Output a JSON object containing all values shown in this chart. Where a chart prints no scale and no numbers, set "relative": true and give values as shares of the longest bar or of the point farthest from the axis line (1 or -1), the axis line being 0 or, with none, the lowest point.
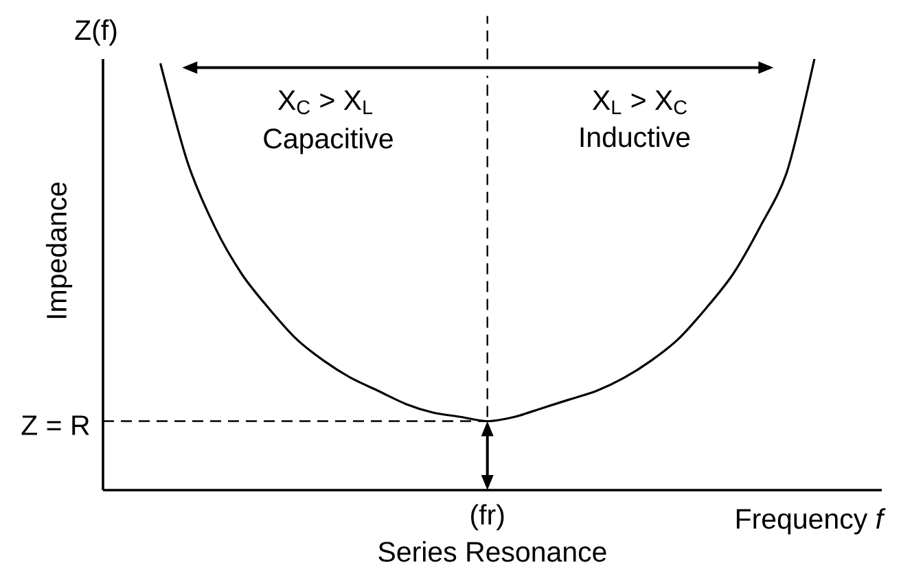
{
  "chart_data": {
    "type": "line",
    "title": "Series Resonance",
    "xlabel": "Frequency *f*",
    "ylabel": "Impedance",
    "categories": [
      null,
      null,
      null,
      null,
      null,
      null,
      null,
      null,
      null,
      null,
      null,
      null,
      null,
      null,
      null,
      null,
      null,
      null,
      null,
      null,
      null,
      null,
      null,
      null,
      null
    ],
    "values": [
      0.99,
      0.76,
      0.61,
      0.5,
      0.42,
      0.35,
      0.3,
      0.26,
      0.23,
      0.2,
      0.18,
      0.17,
      0.16,
      0.17,
      0.19,
      0.21,
      0.23,
      0.26,
      0.3,
      0.35,
      0.42,
      0.5,
      0.61,
      0.74,
      1.0
    ],
    "color": "#000000",
    "relative": true,
    "ref_lines": [
      {
        "axis": "y",
        "value": 0.16,
        "label": "Z = R",
        "line_style": "dashed"
      }
    ],
    "annotations": [
      "Z(f)",
      "X$_{C}$ > X$_{L}$",
      "Capacitive",
      "X$_{L}$ > X$_{C}$",
      "Inductive",
      "(fr)"
    ]
  }
}
